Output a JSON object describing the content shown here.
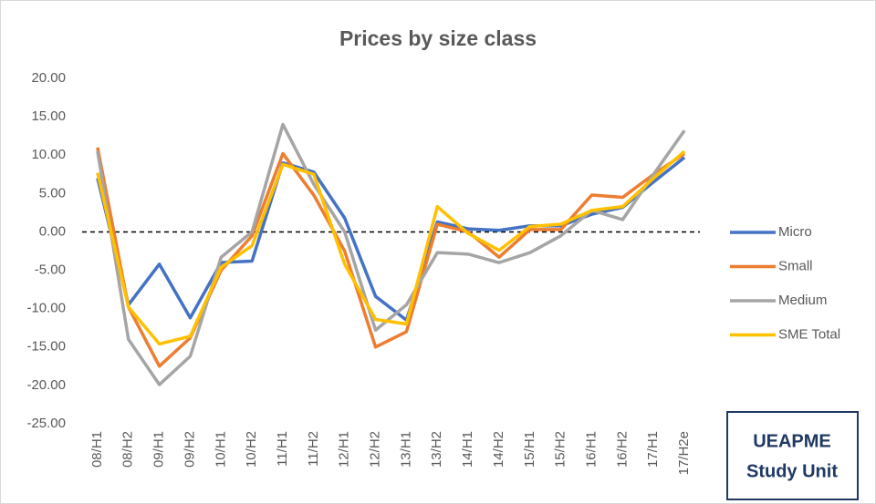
{
  "chart_data": {
    "type": "line",
    "title": "Prices by size class",
    "categories": [
      "08/H1",
      "08/H2",
      "09/H1",
      "09/H2",
      "10/H1",
      "10/H2",
      "11/H1",
      "11/H2",
      "12/H1",
      "12/H2",
      "13/H1",
      "13/H2",
      "14/H1",
      "14/H2",
      "15/H1",
      "15/H2",
      "16/H1",
      "16/H2",
      "17/H1",
      "17/H2e"
    ],
    "series": [
      {
        "name": "Micro",
        "color": "#4472c4",
        "values": [
          7,
          -9.5,
          -4.2,
          -11.2,
          -4,
          -3.8,
          9,
          7.8,
          1.8,
          -8.4,
          -11.5,
          1.3,
          0.4,
          0.2,
          0.8,
          0.8,
          2.3,
          3.2,
          6.5,
          9.7
        ]
      },
      {
        "name": "Small",
        "color": "#ed7d31",
        "values": [
          11,
          -9.8,
          -17.5,
          -13.8,
          -5,
          -0.5,
          10.2,
          4.8,
          -2.5,
          -15,
          -13,
          1,
          0,
          -3.3,
          0.3,
          0.3,
          4.8,
          4.5,
          7.5,
          10.2
        ]
      },
      {
        "name": "Medium",
        "color": "#a5a5a5",
        "values": [
          10.5,
          -14,
          -19.9,
          -16.2,
          -3.3,
          0,
          14,
          6.2,
          0,
          -12.8,
          -9.5,
          -2.7,
          -2.9,
          -4,
          -2.7,
          -0.5,
          2.8,
          1.6,
          7.5,
          13.2
        ]
      },
      {
        "name": "SME Total",
        "color": "#ffc000",
        "values": [
          7.7,
          -9.8,
          -14.6,
          -13.6,
          -4.6,
          -1.8,
          8.8,
          7.5,
          -4.2,
          -11.4,
          -12,
          3.3,
          -0.2,
          -2.4,
          0.7,
          1,
          2.8,
          3.3,
          7,
          10.5
        ]
      }
    ],
    "ylim": [
      -25,
      20
    ],
    "yticks": [
      {
        "value": 20,
        "label": "20.00"
      },
      {
        "value": 15,
        "label": "15.00"
      },
      {
        "value": 10,
        "label": "10.00"
      },
      {
        "value": 5,
        "label": "5.00"
      },
      {
        "value": 0,
        "label": "0.00"
      },
      {
        "value": -5,
        "label": "-5.00"
      },
      {
        "value": -10,
        "label": "-10.00"
      },
      {
        "value": -15,
        "label": "-15.00"
      },
      {
        "value": -20,
        "label": "-20.00"
      },
      {
        "value": -25,
        "label": "-25.00"
      }
    ],
    "reference_line": 0,
    "legend": "right",
    "annotation": [
      "UEAPME",
      "Study Unit"
    ]
  }
}
